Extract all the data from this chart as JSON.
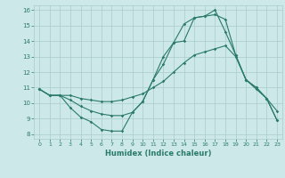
{
  "title": "",
  "xlabel": "Humidex (Indice chaleur)",
  "bg_color": "#cce8e8",
  "grid_color": "#aacccc",
  "line_color": "#2a7a6a",
  "xlim": [
    -0.5,
    23.5
  ],
  "ylim": [
    7.7,
    16.3
  ],
  "xticks": [
    0,
    1,
    2,
    3,
    4,
    5,
    6,
    7,
    8,
    9,
    10,
    11,
    12,
    13,
    14,
    15,
    16,
    17,
    18,
    19,
    20,
    21,
    22,
    23
  ],
  "yticks": [
    8,
    9,
    10,
    11,
    12,
    13,
    14,
    15,
    16
  ],
  "line1_x": [
    0,
    1,
    2,
    3,
    4,
    5,
    6,
    7,
    8,
    9,
    10,
    11,
    12,
    13,
    14,
    15,
    16,
    17,
    18,
    19,
    20,
    21,
    22,
    23
  ],
  "line1_y": [
    10.9,
    10.5,
    10.5,
    10.5,
    10.3,
    10.2,
    10.1,
    10.1,
    10.2,
    10.4,
    10.6,
    11.0,
    11.4,
    12.0,
    12.6,
    13.1,
    13.3,
    13.5,
    13.7,
    13.0,
    11.5,
    10.9,
    10.3,
    9.5
  ],
  "line2_x": [
    0,
    1,
    2,
    3,
    4,
    5,
    6,
    7,
    8,
    9,
    10,
    11,
    12,
    13,
    14,
    15,
    16,
    17,
    18,
    19,
    20,
    21,
    22,
    23
  ],
  "line2_y": [
    10.9,
    10.5,
    10.5,
    9.7,
    9.1,
    8.8,
    8.3,
    8.2,
    8.2,
    9.4,
    10.1,
    11.5,
    13.0,
    13.9,
    15.1,
    15.5,
    15.6,
    15.7,
    15.4,
    13.1,
    11.5,
    11.0,
    10.3,
    8.9
  ],
  "line3_x": [
    0,
    1,
    2,
    3,
    4,
    5,
    6,
    7,
    8,
    9,
    10,
    11,
    12,
    13,
    14,
    15,
    16,
    17,
    18,
    19,
    20,
    21,
    22,
    23
  ],
  "line3_y": [
    10.9,
    10.5,
    10.5,
    10.2,
    9.8,
    9.5,
    9.3,
    9.2,
    9.2,
    9.4,
    10.1,
    11.5,
    12.5,
    13.9,
    14.0,
    15.5,
    15.6,
    16.0,
    14.6,
    13.1,
    11.5,
    11.0,
    10.3,
    8.9
  ]
}
